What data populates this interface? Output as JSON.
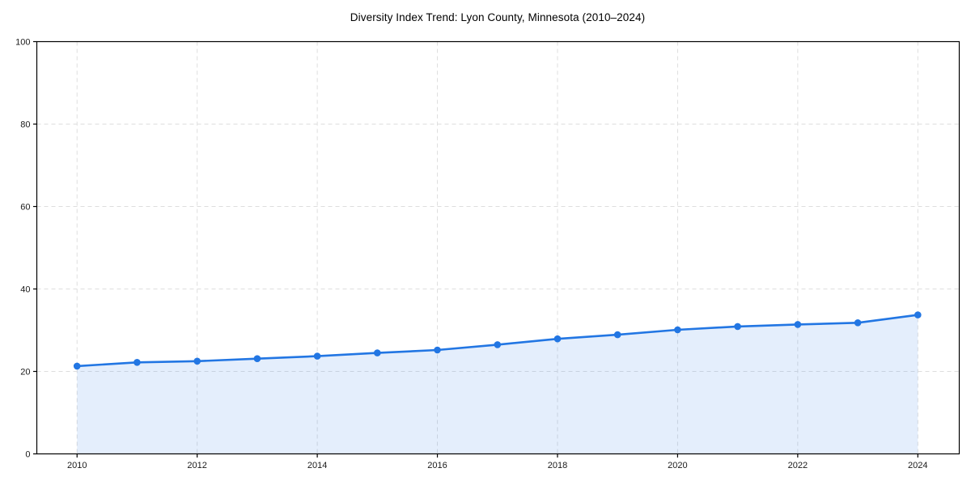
{
  "chart_data": {
    "type": "line",
    "title": "Diversity Index Trend: Lyon County, Minnesota (2010–2024)",
    "xlabel": "",
    "ylabel": "",
    "x": [
      2010,
      2011,
      2012,
      2013,
      2014,
      2015,
      2016,
      2017,
      2018,
      2019,
      2020,
      2021,
      2022,
      2023,
      2024
    ],
    "values": [
      21.3,
      22.2,
      22.5,
      23.1,
      23.7,
      24.5,
      25.2,
      26.5,
      27.9,
      28.9,
      30.1,
      30.9,
      31.4,
      31.8,
      33.7
    ],
    "ylim": [
      0,
      100
    ],
    "yticks": [
      0,
      20,
      40,
      60,
      80,
      100
    ],
    "xticks": [
      2010,
      2012,
      2014,
      2016,
      2018,
      2020,
      2022,
      2024
    ],
    "grid": true,
    "grid_style": "dashed",
    "legend": "none",
    "line_color": "#2276e3",
    "marker_color": "#2276e3",
    "fill_color": "#2276e3",
    "fill_opacity": 0.12,
    "grid_color": "#dedede",
    "axis_color": "#000000",
    "tick_label_color": "#1a1a1a"
  }
}
